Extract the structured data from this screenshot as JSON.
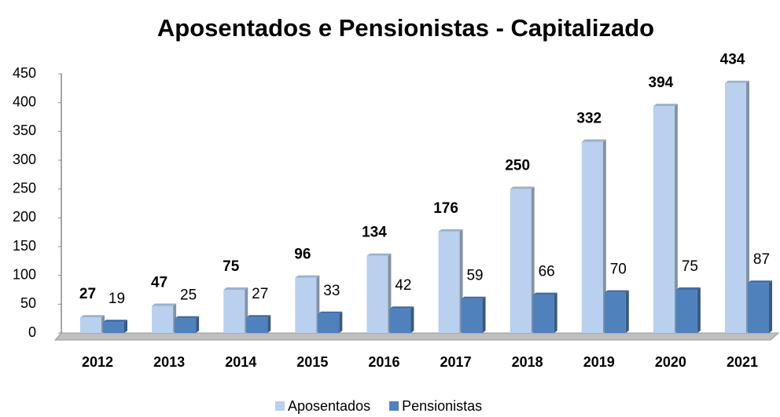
{
  "chart_data": {
    "type": "bar",
    "title": "Aposentados e Pensionistas - Capitalizado",
    "categories": [
      "2012",
      "2013",
      "2014",
      "2015",
      "2016",
      "2017",
      "2018",
      "2019",
      "2020",
      "2021"
    ],
    "series": [
      {
        "name": "Aposentados",
        "color": "#b9d0ee",
        "values": [
          27,
          47,
          75,
          96,
          134,
          176,
          250,
          332,
          394,
          434
        ]
      },
      {
        "name": "Pensionistas",
        "color": "#4f81bd",
        "values": [
          19,
          25,
          27,
          33,
          42,
          59,
          66,
          70,
          75,
          87
        ]
      }
    ],
    "ylim": [
      0,
      450
    ],
    "yticks": [
      0,
      50,
      100,
      150,
      200,
      250,
      300,
      350,
      400,
      450
    ],
    "legend": "bottom"
  }
}
